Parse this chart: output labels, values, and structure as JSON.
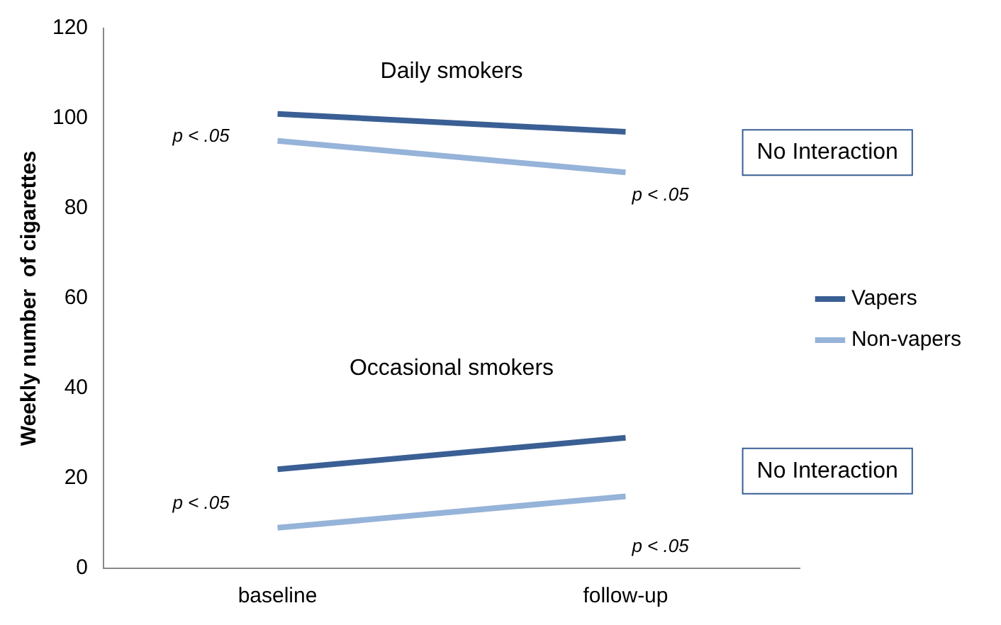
{
  "chart_data": {
    "type": "line",
    "ylabel": "Weekly number  of cigarettes",
    "categories": [
      "baseline",
      "follow-up"
    ],
    "series": [
      {
        "name": "Vapers",
        "color": "#3a5f94",
        "values": [
          101,
          97
        ]
      },
      {
        "name": "Non-vapers",
        "color": "#96b3d9",
        "values": [
          95,
          88
        ]
      },
      {
        "color": "#3a5f94",
        "values": [
          22,
          29
        ]
      },
      {
        "color": "#96b3d9",
        "values": [
          9,
          16
        ]
      }
    ],
    "ylim": [
      0,
      120
    ],
    "yticks": [
      0,
      20,
      40,
      60,
      80,
      100,
      120
    ],
    "grid": false,
    "legend": "right",
    "marker": "none",
    "line_style": "solid",
    "annotations": [
      "Daily smokers",
      "Occasional smokers",
      "p < .05",
      "p < .05",
      "p < .05",
      "p < .05",
      "No Interaction",
      "No Interaction"
    ]
  }
}
